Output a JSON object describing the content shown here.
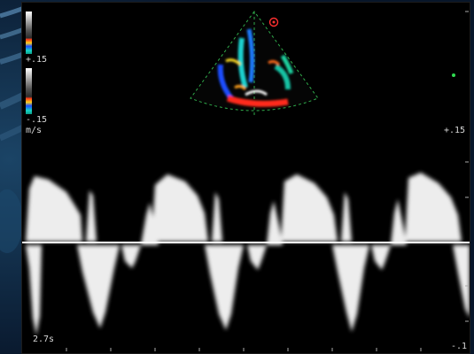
{
  "colorbar": {
    "top_value": "+.15",
    "bottom_value": "-.15",
    "unit": "m/s"
  },
  "right_scale": {
    "top_value": "+.15",
    "bottom_value": "-.1"
  },
  "sweep_time": "2.7s",
  "colors": {
    "backdrop": "#08162a",
    "sector_outline": "#2faa4a",
    "baseline": "#ffffff",
    "doppler_trace": "#ffffff"
  },
  "icons": [
    "color-doppler-sector-icon",
    "sample-volume-marker-icon"
  ]
}
